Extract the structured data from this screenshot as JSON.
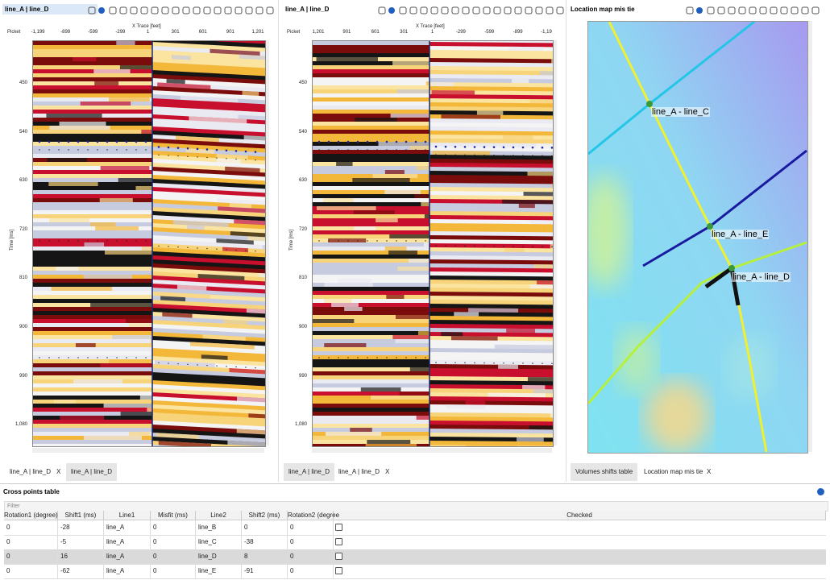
{
  "panels": [
    {
      "title": "line_A | line_D",
      "picket": "Picket",
      "x_label": "X Trace [feet]",
      "y_label": "Time [ms]",
      "x_ticks": [
        "-1,199",
        "-899",
        "-599",
        "-299",
        "1",
        "301",
        "601",
        "901",
        "1,201"
      ],
      "y_ticks": [
        "450",
        "540",
        "630",
        "720",
        "810",
        "900",
        "990",
        "1,080"
      ],
      "tabs": [
        "line_A | line_D",
        "X",
        "line_A | line_D"
      ]
    },
    {
      "title": "line_A | line_D",
      "picket": "Picket",
      "x_label": "X Trace [feet]",
      "y_label": "Time [ms]",
      "x_ticks": [
        "1,201",
        "901",
        "601",
        "301",
        "1",
        "-299",
        "-599",
        "-899",
        "-1,19"
      ],
      "y_ticks": [
        "450",
        "540",
        "630",
        "720",
        "810",
        "900",
        "990",
        "1,080"
      ],
      "tabs": [
        "line_A | line_D",
        "line_A | line_D",
        "X"
      ]
    }
  ],
  "map": {
    "title": "Location map mis tie",
    "labels": [
      "line_A - line_C",
      "line_A - line_E",
      "line_A - line_D"
    ],
    "tabs": [
      "Volumes shifts table",
      "Location map mis tie",
      "X"
    ]
  },
  "table": {
    "title": "Cross points table",
    "filter": "Filter",
    "columns": [
      "Rotation1 (degree)",
      "Shift1 (ms)",
      "Line1",
      "Misfit (ms)",
      "Line2",
      "Shift2 (ms)",
      "Rotation2 (degree",
      "Checked"
    ],
    "rows": [
      [
        0,
        -28,
        "line_A",
        0,
        "line_B",
        0,
        0
      ],
      [
        0,
        -5,
        "line_A",
        0,
        "line_C",
        -38,
        0
      ],
      [
        0,
        16,
        "line_A",
        0,
        "line_D",
        8,
        0
      ],
      [
        0,
        -62,
        "line_A",
        0,
        "line_E",
        -91,
        0
      ]
    ]
  }
}
